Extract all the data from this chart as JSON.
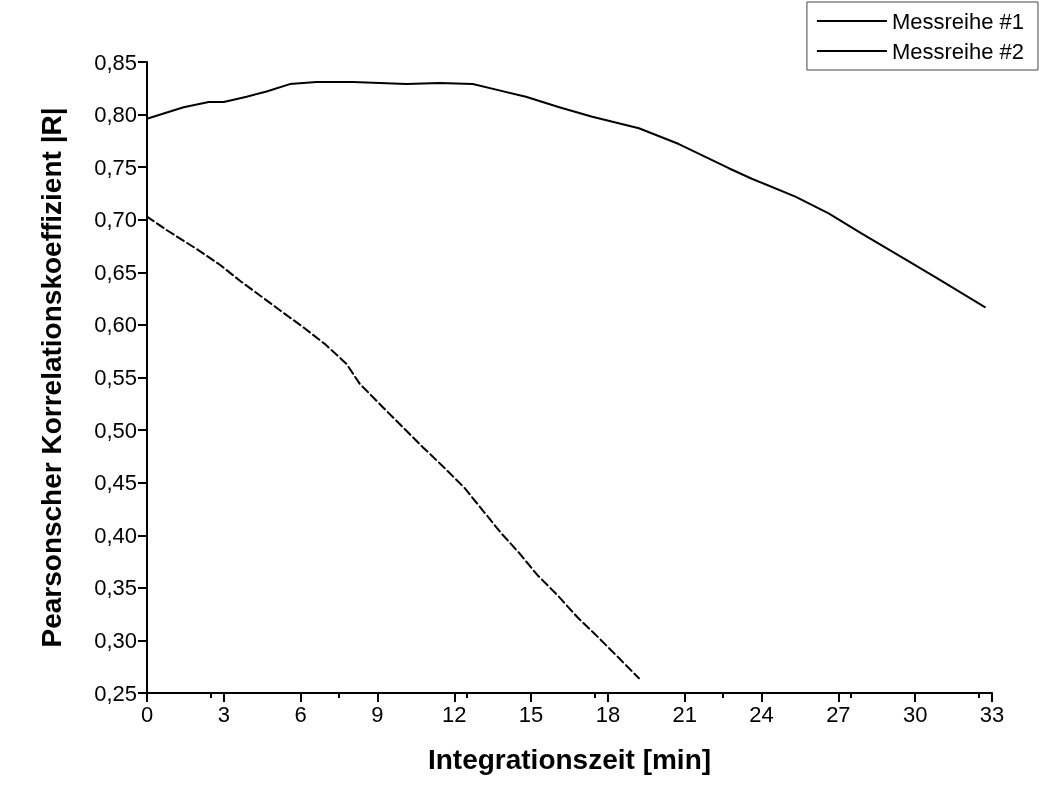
{
  "chart_data": {
    "type": "line",
    "xlabel": "Integrationszeit [min]",
    "ylabel": "Pearsonscher Korrelationskoeffizient |R|",
    "xlim": [
      0,
      33
    ],
    "xticks": [
      0,
      3,
      6,
      9,
      12,
      15,
      18,
      21,
      24,
      27,
      30,
      33
    ],
    "ylim": [
      0.25,
      0.85
    ],
    "yticks": [
      {
        "value": 0.25,
        "label": "0,25"
      },
      {
        "value": 0.3,
        "label": "0,30"
      },
      {
        "value": 0.35,
        "label": "0,35"
      },
      {
        "value": 0.4,
        "label": "0,40"
      },
      {
        "value": 0.45,
        "label": "0,45"
      },
      {
        "value": 0.5,
        "label": "0,50"
      },
      {
        "value": 0.55,
        "label": "0,55"
      },
      {
        "value": 0.6,
        "label": "0,60"
      },
      {
        "value": 0.65,
        "label": "0,65"
      },
      {
        "value": 0.7,
        "label": "0,70"
      },
      {
        "value": 0.75,
        "label": "0,75"
      },
      {
        "value": 0.8,
        "label": "0,80"
      },
      {
        "value": 0.85,
        "label": "0,85"
      }
    ],
    "grid": false,
    "legend": "top right",
    "marker": "none",
    "series": [
      {
        "name": "Messreihe #1",
        "color": "#000000",
        "line_style": "solid",
        "x": [
          0,
          0.65,
          1.43,
          2.41,
          3.0,
          3.89,
          4.67,
          5.58,
          6.62,
          8.04,
          9.09,
          10.13,
          11.43,
          12.72,
          13.76,
          14.8,
          16.1,
          17.39,
          19.21,
          20.77,
          22.72,
          23.62,
          25.32,
          26.62,
          27.9,
          29.85,
          31.16,
          32.72
        ],
        "values": [
          0.796,
          0.801,
          0.807,
          0.812,
          0.812,
          0.817,
          0.822,
          0.829,
          0.831,
          0.831,
          0.83,
          0.829,
          0.83,
          0.829,
          0.823,
          0.817,
          0.807,
          0.798,
          0.787,
          0.772,
          0.749,
          0.739,
          0.722,
          0.706,
          0.687,
          0.659,
          0.64,
          0.617
        ]
      },
      {
        "name": "Messreihe #2",
        "color": "#000000",
        "line_style": "dashed",
        "x": [
          0,
          0.78,
          1.95,
          2.86,
          3.63,
          4.41,
          5.3,
          6.09,
          6.94,
          7.79,
          8.31,
          9.2,
          9.98,
          10.76,
          11.62,
          12.4,
          13.1,
          13.83,
          14.54,
          15.25,
          16.03,
          16.81,
          17.62,
          18.44,
          19.21
        ],
        "values": [
          0.703,
          0.69,
          0.672,
          0.657,
          0.642,
          0.628,
          0.612,
          0.598,
          0.582,
          0.563,
          0.544,
          0.522,
          0.503,
          0.484,
          0.464,
          0.445,
          0.424,
          0.402,
          0.383,
          0.362,
          0.343,
          0.322,
          0.303,
          0.283,
          0.264
        ]
      }
    ]
  }
}
